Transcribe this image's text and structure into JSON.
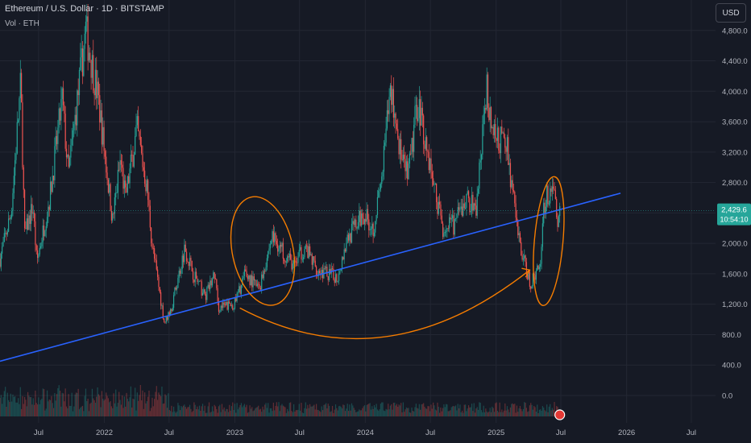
{
  "header": {
    "title": "Ethereum / U.S. Dollar · 1D · BITSTAMP",
    "volume_label": "Vol · ETH",
    "currency_button": "USD"
  },
  "price_label": {
    "price": "2,429.6",
    "countdown": "10:54:10"
  },
  "colors": {
    "background": "#161a25",
    "grid": "#232733",
    "up": "#26a69a",
    "down": "#ef5350",
    "trendline": "#2962ff",
    "annotation": "#f57c00",
    "price_label": "#26a69a"
  },
  "chart_data": {
    "type": "candlestick",
    "title": "Ethereum / U.S. Dollar · 1D · BITSTAMP",
    "ylim": [
      -360,
      5200
    ],
    "yticks": [
      0,
      400,
      800,
      1200,
      1600,
      2000,
      2400,
      2800,
      3200,
      3600,
      4000,
      4400,
      4800
    ],
    "ytick_labels": [
      "0.0",
      "400.0",
      "800.0",
      "1,200.0",
      "1,600.0",
      "2,000.0",
      "2,400.0",
      "2,800.0",
      "3,200.0",
      "3,600.0",
      "4,000.0",
      "4,400.0",
      "4,800.0"
    ],
    "xlim": [
      "2021-03-15",
      "2026-12-15"
    ],
    "xticks": [
      "2021-07-01",
      "2022-01-01",
      "2022-07-01",
      "2023-01-01",
      "2023-07-01",
      "2024-01-01",
      "2024-07-01",
      "2025-01-01",
      "2025-07-01",
      "2026-01-01",
      "2026-07-01"
    ],
    "xtick_labels": [
      "Jul",
      "2022",
      "Jul",
      "2023",
      "Jul",
      "2024",
      "Jul",
      "2025",
      "Jul",
      "2026",
      "Jul"
    ],
    "price_path": [
      [
        "2021-03-15",
        1800
      ],
      [
        "2021-04-15",
        2400
      ],
      [
        "2021-05-12",
        4100
      ],
      [
        "2021-05-23",
        2100
      ],
      [
        "2021-06-15",
        2500
      ],
      [
        "2021-06-26",
        1750
      ],
      [
        "2021-08-01",
        2600
      ],
      [
        "2021-09-05",
        3900
      ],
      [
        "2021-09-22",
        2900
      ],
      [
        "2021-11-10",
        4800
      ],
      [
        "2021-12-15",
        3900
      ],
      [
        "2022-01-24",
        2300
      ],
      [
        "2022-02-15",
        3100
      ],
      [
        "2022-03-01",
        2600
      ],
      [
        "2022-04-02",
        3500
      ],
      [
        "2022-05-01",
        2700
      ],
      [
        "2022-05-14",
        2000
      ],
      [
        "2022-06-18",
        950
      ],
      [
        "2022-07-10",
        1200
      ],
      [
        "2022-08-14",
        1950
      ],
      [
        "2022-09-07",
        1600
      ],
      [
        "2022-10-10",
        1300
      ],
      [
        "2022-11-06",
        1600
      ],
      [
        "2022-11-15",
        1150
      ],
      [
        "2022-12-31",
        1200
      ],
      [
        "2023-01-30",
        1600
      ],
      [
        "2023-03-10",
        1400
      ],
      [
        "2023-04-15",
        2100
      ],
      [
        "2023-06-15",
        1700
      ],
      [
        "2023-07-15",
        1950
      ],
      [
        "2023-08-20",
        1650
      ],
      [
        "2023-10-15",
        1550
      ],
      [
        "2023-11-10",
        2050
      ],
      [
        "2023-12-28",
        2400
      ],
      [
        "2024-01-23",
        2200
      ],
      [
        "2024-02-15",
        2800
      ],
      [
        "2024-03-12",
        4050
      ],
      [
        "2024-04-15",
        3000
      ],
      [
        "2024-05-01",
        2900
      ],
      [
        "2024-05-27",
        3900
      ],
      [
        "2024-07-05",
        2900
      ],
      [
        "2024-08-05",
        2200
      ],
      [
        "2024-09-06",
        2250
      ],
      [
        "2024-10-15",
        2600
      ],
      [
        "2024-11-05",
        2400
      ],
      [
        "2024-12-06",
        4050
      ],
      [
        "2024-12-25",
        3400
      ],
      [
        "2025-01-31",
        3300
      ],
      [
        "2025-02-28",
        2200
      ],
      [
        "2025-03-15",
        1850
      ],
      [
        "2025-04-09",
        1450
      ],
      [
        "2025-05-07",
        1800
      ],
      [
        "2025-05-12",
        2500
      ],
      [
        "2025-06-11",
        2800
      ],
      [
        "2025-06-22",
        2200
      ],
      [
        "2025-06-28",
        2430
      ]
    ],
    "trendline": {
      "start": [
        "2021-03-15",
        450
      ],
      "end": [
        "2025-12-15",
        2660
      ]
    },
    "annotations": [
      {
        "type": "ellipse",
        "center": [
          "2023-03-20",
          1900
        ],
        "span_days": 170,
        "span_price": 1450,
        "rotation_deg": -12
      },
      {
        "type": "curved-arrow",
        "from": [
          "2023-01-15",
          1150
        ],
        "to": [
          "2025-04-05",
          1650
        ]
      },
      {
        "type": "ellipse",
        "center": [
          "2025-05-28",
          2030
        ],
        "span_days": 80,
        "span_price": 1700,
        "rotation_deg": 5
      }
    ],
    "last_price": 2429.6
  }
}
